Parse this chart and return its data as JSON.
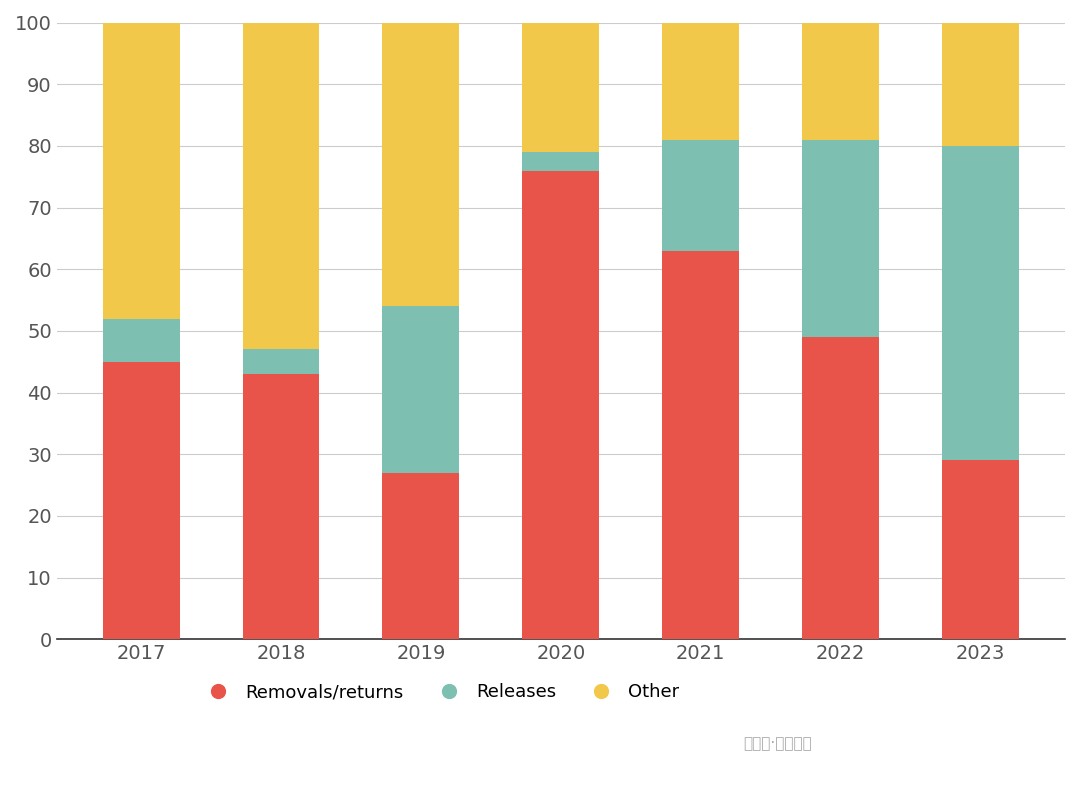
{
  "years": [
    "2017",
    "2018",
    "2019",
    "2020",
    "2021",
    "2022",
    "2023"
  ],
  "removals_returns": [
    45,
    43,
    27,
    76,
    63,
    49,
    29
  ],
  "releases": [
    7,
    4,
    27,
    3,
    18,
    32,
    51
  ],
  "other": [
    48,
    53,
    46,
    21,
    19,
    19,
    20
  ],
  "color_removals": "#E8534A",
  "color_releases": "#7DBFB0",
  "color_other": "#F2C84B",
  "color_background": "#FFFFFF",
  "color_grid": "#CCCCCC",
  "color_axis": "#555555",
  "ylim": [
    0,
    100
  ],
  "yticks": [
    0,
    10,
    20,
    30,
    40,
    50,
    60,
    70,
    80,
    90,
    100
  ],
  "legend_labels": [
    "Removals/returns",
    "Releases",
    "Other"
  ],
  "bar_width": 0.55,
  "figsize": [
    10.8,
    7.87
  ],
  "dpi": 100
}
